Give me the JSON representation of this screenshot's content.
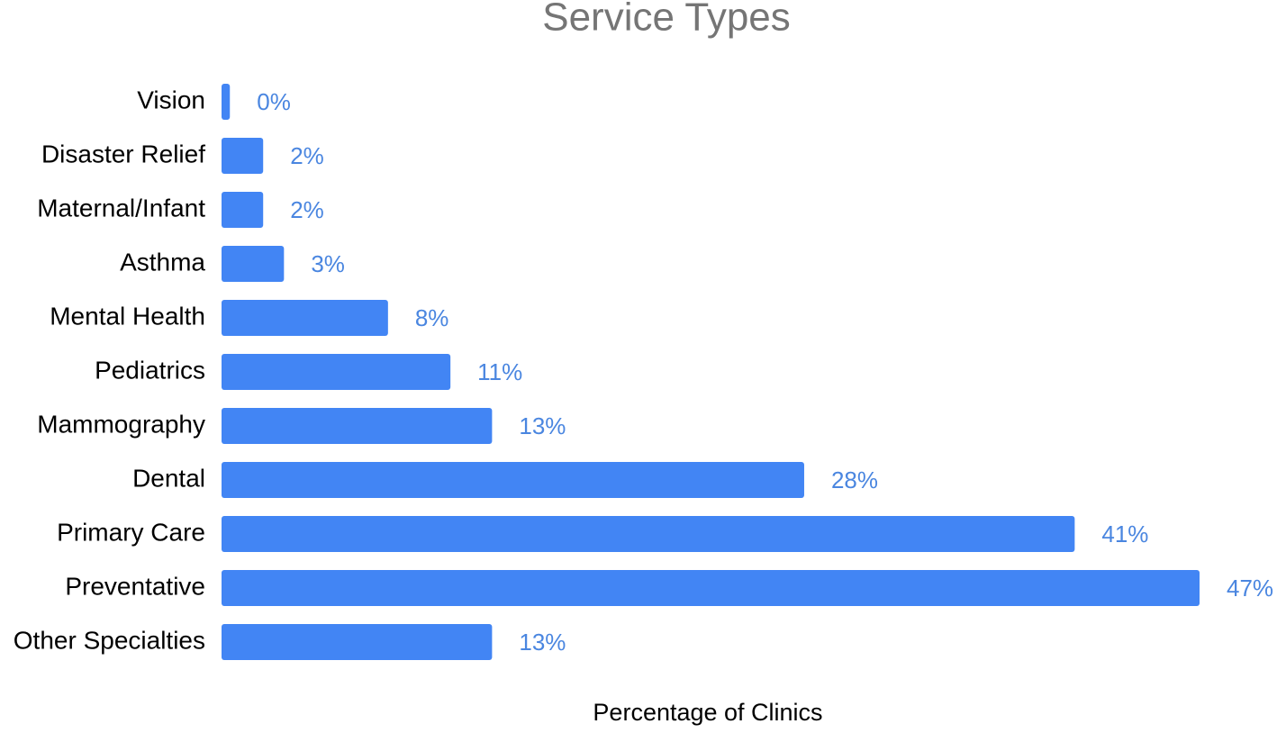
{
  "chart_data": {
    "type": "bar",
    "orientation": "horizontal",
    "title": "Service Types",
    "x_label": "Percentage of Clinics",
    "categories": [
      "Vision",
      "Disaster Relief",
      "Maternal/Infant",
      "Asthma",
      "Mental Health",
      "Pediatrics",
      "Mammography",
      "Dental",
      "Primary Care",
      "Preventative",
      "Other Specialties"
    ],
    "values": [
      0.4,
      2,
      2,
      3,
      8,
      11,
      13,
      28,
      41,
      47,
      13
    ],
    "value_labels": [
      "0%",
      "2%",
      "2%",
      "3%",
      "8%",
      "11%",
      "13%",
      "28%",
      "41%",
      "47%",
      "13%"
    ],
    "color": "#4285f4",
    "label_color": "#4a86e0"
  }
}
